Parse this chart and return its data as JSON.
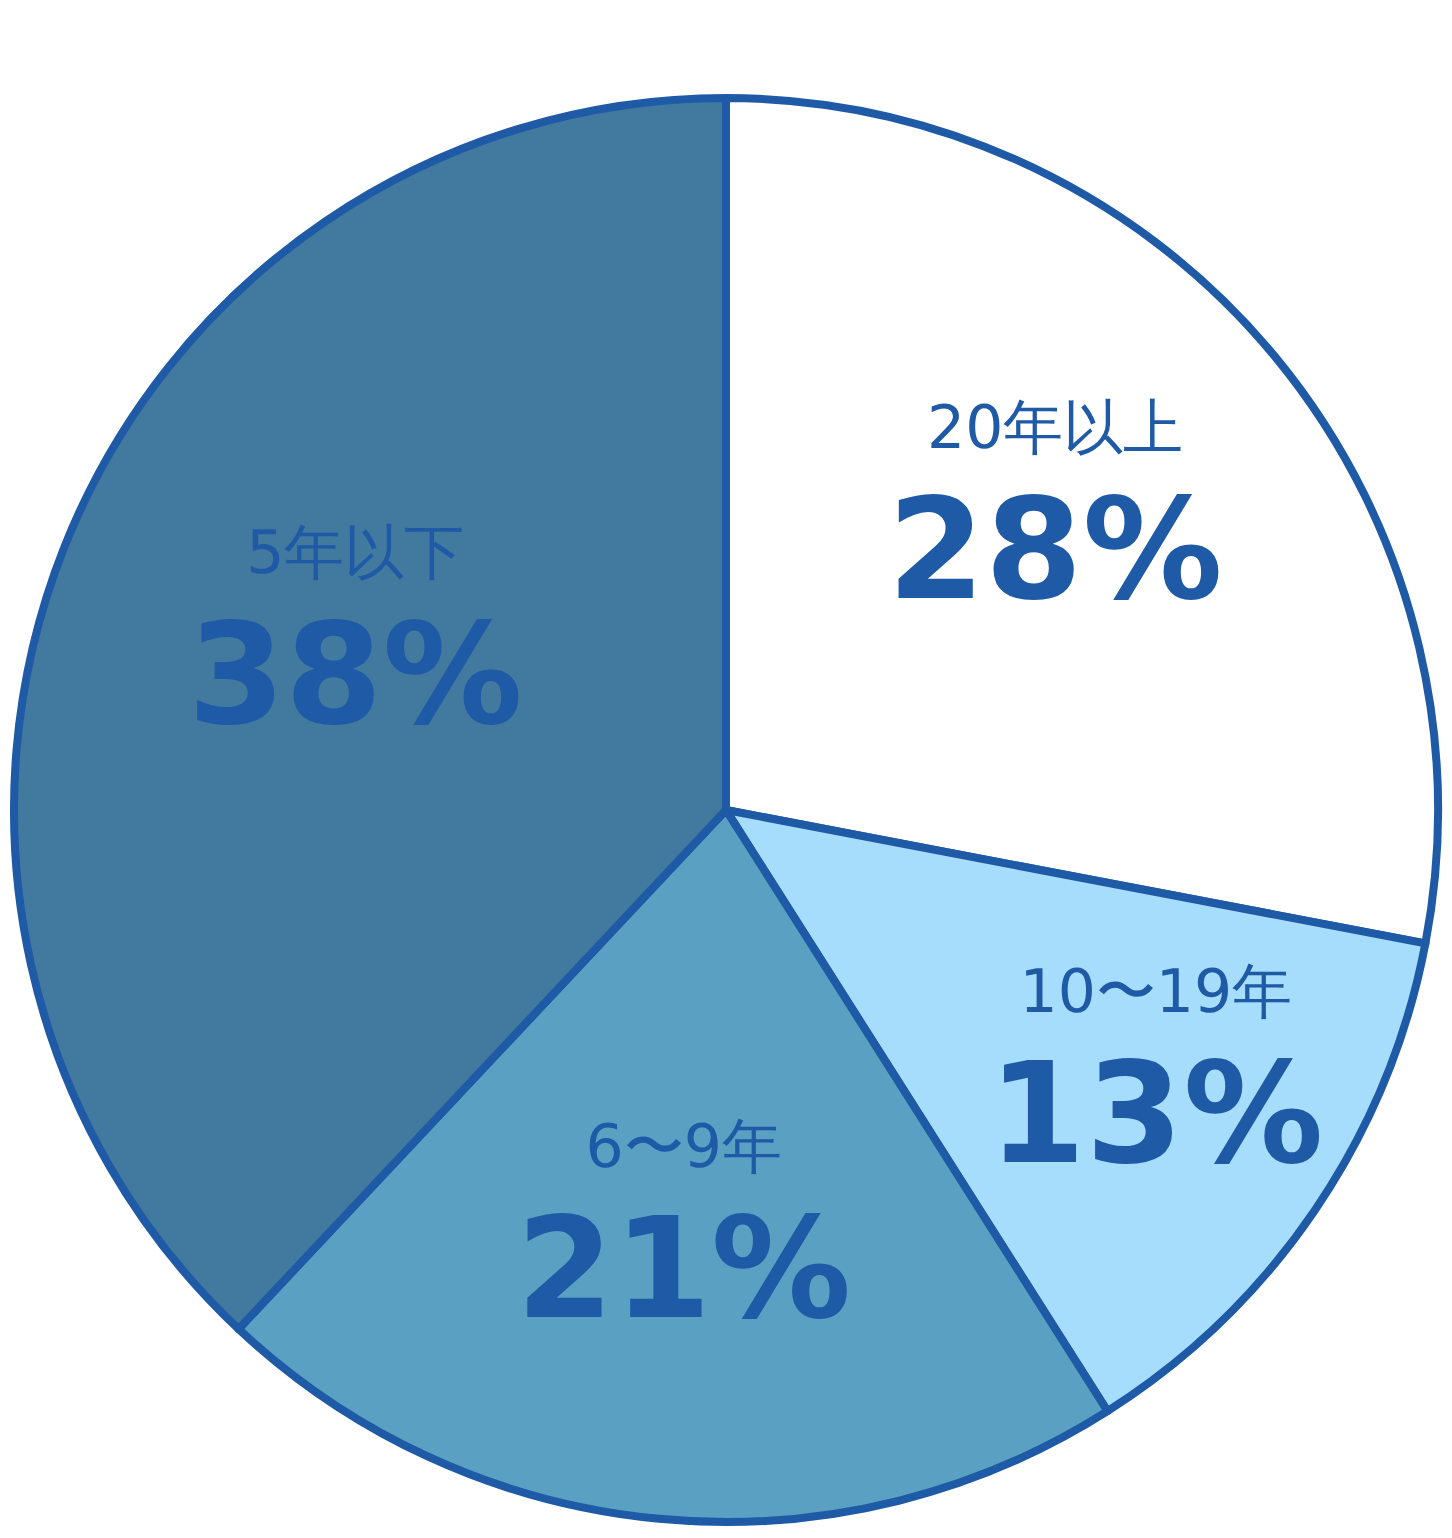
{
  "chart_data": {
    "type": "pie",
    "categories": [
      "20年以上",
      "10〜19年",
      "6〜9年",
      "5年以下"
    ],
    "values": [
      28,
      13,
      21,
      38
    ],
    "value_labels": [
      "28%",
      "13%",
      "21%",
      "38%"
    ],
    "colors": [
      "#ffffff",
      "#a6ddfc",
      "#5aa0c2",
      "#41799f"
    ],
    "legend": false
  }
}
